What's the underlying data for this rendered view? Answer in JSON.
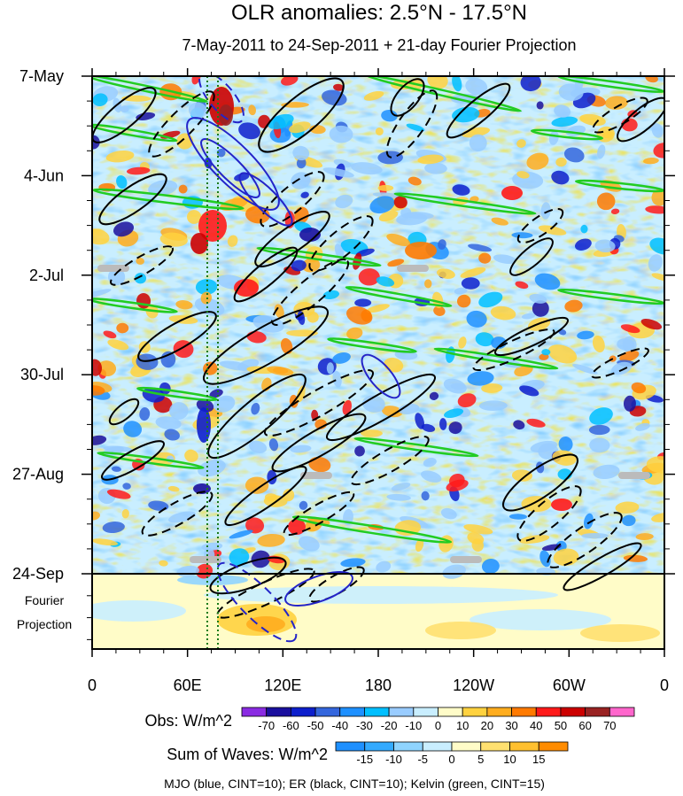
{
  "chart_data": {
    "type": "heatmap",
    "title": "OLR anomalies: 2.5°N - 17.5°N",
    "subtitle": "7-May-2011 to 24-Sep-2011 + 21-day Fourier Projection",
    "x_ticks": [
      "0",
      "60E",
      "120E",
      "180",
      "120W",
      "60W",
      "0"
    ],
    "x_range_deg": [
      0,
      360
    ],
    "y_ticks": [
      "7-May",
      "4-Jun",
      "2-Jul",
      "30-Jul",
      "27-Aug",
      "24-Sep"
    ],
    "y_tick_day_offsets": [
      0,
      28,
      56,
      84,
      112,
      140
    ],
    "projection_label_line1": "Fourier",
    "projection_label_line2": "Projection",
    "projection_days": 21,
    "obs_colorbar": {
      "label": "Obs: W/m^2",
      "levels": [
        "-70",
        "-60",
        "-50",
        "-40",
        "-30",
        "-20",
        "-10",
        "0",
        "10",
        "20",
        "30",
        "40",
        "50",
        "60",
        "70"
      ],
      "colors": [
        "#8a2be2",
        "#1a0f9e",
        "#0d1fcc",
        "#3466dd",
        "#1e90ff",
        "#00bfff",
        "#99ccff",
        "#c9eeff",
        "#fffcc8",
        "#ffd23f",
        "#ffad1f",
        "#ff7a00",
        "#ff1a1a",
        "#cc0000",
        "#992222",
        "#ff66cc"
      ]
    },
    "waves_colorbar": {
      "label": "Sum of Waves: W/m^2",
      "levels": [
        "-15",
        "-10",
        "-5",
        "0",
        "5",
        "10",
        "15"
      ],
      "colors": [
        "#1e90ff",
        "#33aaff",
        "#8fd4ff",
        "#c9eeff",
        "#fffcc8",
        "#ffe070",
        "#ffc030",
        "#ff8c00"
      ]
    },
    "overlays": {
      "mjo": {
        "name": "MJO",
        "color": "#2424c8",
        "cint": 10
      },
      "er": {
        "name": "ER",
        "color": "#000000",
        "cint": 10
      },
      "kelvin": {
        "name": "Kelvin",
        "color": "#22cc22",
        "cint": 15
      }
    },
    "caption": "MJO (blue, CINT=10); ER (black, CINT=10); Kelvin (green, CINT=15)"
  }
}
